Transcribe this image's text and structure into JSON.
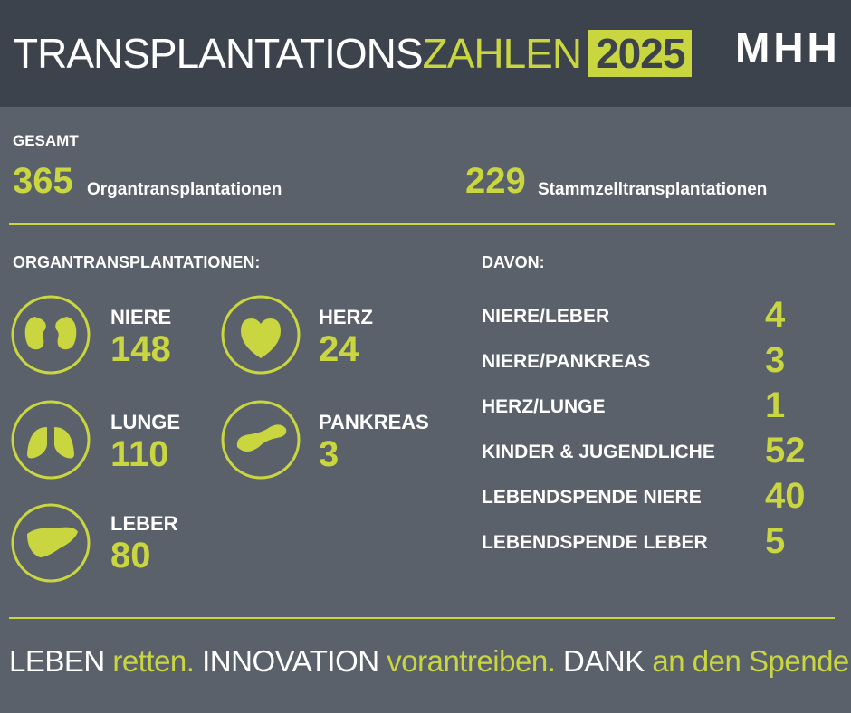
{
  "header": {
    "title_main": "TRANSPLANTATIONS",
    "title_accent": "ZAHLEN",
    "year": "2025",
    "logo": "MHH"
  },
  "total": {
    "label": "GESAMT",
    "items": [
      {
        "value": 365,
        "label": "Organtransplantationen"
      },
      {
        "value": 229,
        "label": "Stammzelltransplantationen"
      }
    ]
  },
  "organs": {
    "heading": "ORGANTRANSPLANTATIONEN:",
    "items": [
      {
        "name": "NIERE",
        "value": 148
      },
      {
        "name": "HERZ",
        "value": 24
      },
      {
        "name": "LUNGE",
        "value": 110
      },
      {
        "name": "PANKREAS",
        "value": 3
      },
      {
        "name": "LEBER",
        "value": 80
      }
    ]
  },
  "breakdown": {
    "heading": "DAVON:",
    "items": [
      {
        "label": "NIERE/LEBER",
        "value": 4
      },
      {
        "label": "NIERE/PANKREAS",
        "value": 3
      },
      {
        "label": "HERZ/LUNGE",
        "value": 1
      },
      {
        "label": "KINDER & JUGENDLICHE",
        "value": 52
      },
      {
        "label": "LEBENDSPENDE NIERE",
        "value": 40
      },
      {
        "label": "LEBENDSPENDE LEBER",
        "value": 5
      }
    ]
  },
  "footer": {
    "parts": [
      "LEBEN",
      "retten.",
      "INNOVATION",
      "vorantreiben.",
      "DANK",
      "an den Spender."
    ]
  }
}
